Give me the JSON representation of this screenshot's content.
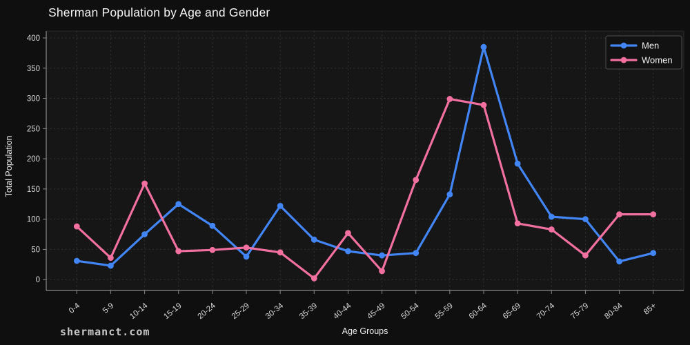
{
  "page": {
    "watermark": "shermanct.com"
  },
  "chart_data": {
    "type": "line",
    "title": "Sherman Population by Age and Gender",
    "xlabel": "Age Groups",
    "ylabel": "Total Population",
    "categories": [
      "0-4",
      "5-9",
      "10-14",
      "15-19",
      "20-24",
      "25-29",
      "30-34",
      "35-39",
      "40-44",
      "45-49",
      "50-54",
      "55-59",
      "60-64",
      "65-69",
      "70-74",
      "75-79",
      "80-84",
      "85+"
    ],
    "series": [
      {
        "name": "Men",
        "color": "#4285f4",
        "values": [
          31,
          23,
          75,
          125,
          89,
          38,
          122,
          66,
          47,
          40,
          44,
          141,
          385,
          192,
          104,
          100,
          30,
          44
        ]
      },
      {
        "name": "Women",
        "color": "#f2709f",
        "values": [
          88,
          36,
          159,
          47,
          49,
          53,
          45,
          2,
          77,
          14,
          165,
          299,
          289,
          93,
          83,
          40,
          108,
          108
        ]
      }
    ],
    "yticks": [
      0,
      50,
      100,
      150,
      200,
      250,
      300,
      350,
      400
    ],
    "ylim": [
      0,
      400
    ],
    "grid": true,
    "grid_style": "dashed",
    "legend_position": "top-right",
    "background": "#0f0f0f",
    "plot_background": "#161616",
    "gridline_color": "#343434",
    "axis_color": "#8a8a8a",
    "text_color": "#e8e8e8"
  }
}
